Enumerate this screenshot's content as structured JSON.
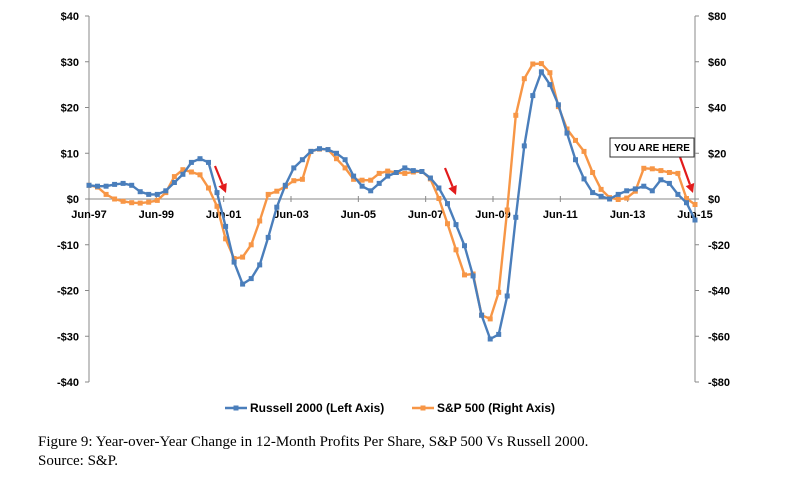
{
  "chart_data": {
    "type": "line",
    "x_tick_labels": [
      "Jun-97",
      "Jun-99",
      "Jun-01",
      "Jun-03",
      "Jun-05",
      "Jun-07",
      "Jun-09",
      "Jun-11",
      "Jun-13",
      "Jun-15"
    ],
    "x_range": [
      "Jun-97",
      "Jun-15"
    ],
    "left_axis": {
      "ticks": [
        "$40",
        "$30",
        "$20",
        "$10",
        "$0",
        "-$10",
        "-$20",
        "-$30",
        "-$40"
      ],
      "range": [
        -40,
        40
      ]
    },
    "right_axis": {
      "ticks": [
        "$80",
        "$60",
        "$40",
        "$20",
        "$0",
        "-$20",
        "-$40",
        "-$60",
        "-$80"
      ],
      "range": [
        -80,
        80
      ]
    },
    "grid": false,
    "legend_position": "bottom",
    "series": [
      {
        "name": "Russell 2000 (Left Axis)",
        "axis": "left",
        "color": "#4a7ebb",
        "marker": "square",
        "values": [
          3,
          2.8,
          2.8,
          3.2,
          3.4,
          3,
          1.6,
          1,
          1,
          1.8,
          3.6,
          5.4,
          8,
          8.8,
          8,
          1.4,
          -6,
          -13.8,
          -18.6,
          -17.4,
          -14.4,
          -8.4,
          -1.8,
          3,
          6.8,
          8.6,
          10.4,
          11,
          10.8,
          10,
          8.6,
          5,
          2.8,
          1.8,
          3.4,
          5,
          5.8,
          6.8,
          6.2,
          6,
          4.6,
          2.4,
          -1,
          -5.6,
          -10.2,
          -16.8,
          -25.4,
          -30.6,
          -29.6,
          -21.2,
          -4,
          11.6,
          22.6,
          27.8,
          25,
          20.6,
          14.4,
          8.6,
          4.4,
          1.4,
          0.6,
          0,
          1,
          1.8,
          2.2,
          2.8,
          1.8,
          4.2,
          3.4,
          1,
          -0.8,
          -4.6
        ]
      },
      {
        "name": "S&P 500 (Right Axis)",
        "axis": "right",
        "color": "#f79646",
        "marker": "square",
        "values": [
          6,
          5.2,
          2,
          0,
          -1,
          -1.6,
          -1.8,
          -1.4,
          -0.6,
          2.8,
          9.8,
          12.8,
          11.8,
          10.6,
          4.8,
          -3.2,
          -17.4,
          -26,
          -25.4,
          -20,
          -9.6,
          2,
          3.4,
          5.4,
          8,
          8.6,
          20.8,
          21.8,
          21.6,
          17.6,
          13.6,
          8.6,
          8.2,
          8.2,
          11.2,
          12.2,
          11.6,
          11.2,
          11.8,
          12,
          8.8,
          0.2,
          -10.8,
          -22.2,
          -33.2,
          -32.8,
          -50.8,
          -52.4,
          -40.8,
          -4.8,
          36.6,
          52.6,
          59,
          59.2,
          55.2,
          40.4,
          30.6,
          25.6,
          20.8,
          11.6,
          4.2,
          0.6,
          -0.2,
          0.4,
          3.4,
          13.4,
          13.2,
          12.4,
          11.6,
          11.2,
          0.2,
          -2.4
        ]
      }
    ],
    "annotations": [
      {
        "type": "callout",
        "text": "YOU ARE HERE"
      }
    ]
  },
  "caption": {
    "line1": "Figure 9: Year-over-Year Change in 12-Month Profits Per Share, S&P 500 Vs Russell 2000.",
    "line2": "Source: S&P."
  }
}
